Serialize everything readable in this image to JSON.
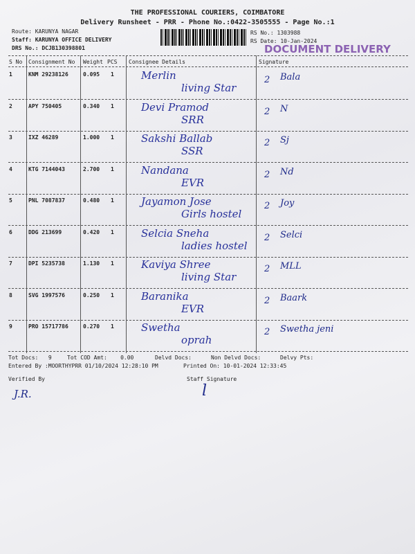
{
  "header": {
    "company": "THE PROFESSIONAL COURIERS, COIMBATORE",
    "subtitle": "Delivery Runsheet - PRR - Phone No.:0422-3505555 - Page No.:1",
    "route": "Route: KARUNYA NAGAR",
    "staff": "Staff: KARUNYA OFFICE DELIVERY",
    "drs_no": "DRS No.: DCJB130398801",
    "rs_no": "RS No.: 1303988",
    "rs_date": "RS Date: 10-Jan-2024",
    "stamp": "DOCUMENT DELIVERY"
  },
  "table": {
    "columns": [
      "S No",
      "Consignment No",
      "Weight",
      "PCS",
      "Consignee Details",
      "Signature"
    ],
    "rows": [
      {
        "sno": "1",
        "consignment": "KNM 29238126",
        "weight": "0.095",
        "pcs": "1",
        "name": "Merlin",
        "place": "living Star",
        "sign": "Bala"
      },
      {
        "sno": "2",
        "consignment": "APY 750405",
        "weight": "0.340",
        "pcs": "1",
        "name": "Devi Pramod",
        "place": "SRR",
        "sign": "N"
      },
      {
        "sno": "3",
        "consignment": "IXZ 46289",
        "weight": "1.000",
        "pcs": "1",
        "name": "Sakshi Ballab",
        "place": "SSR",
        "sign": "Sj"
      },
      {
        "sno": "4",
        "consignment": "KTG 7144043",
        "weight": "2.700",
        "pcs": "1",
        "name": "Nandana",
        "place": "EVR",
        "sign": "Nd"
      },
      {
        "sno": "5",
        "consignment": "PNL 7087837",
        "weight": "0.480",
        "pcs": "1",
        "name": "Jayamon Jose",
        "place": "Girls hostel",
        "sign": "Joy"
      },
      {
        "sno": "6",
        "consignment": "DDG 213699",
        "weight": "0.420",
        "pcs": "1",
        "name": "Selcia Sneha",
        "place": "ladies hostel",
        "sign": "Selci"
      },
      {
        "sno": "7",
        "consignment": "DPI 5235738",
        "weight": "1.130",
        "pcs": "1",
        "name": "Kaviya Shree",
        "place": "living Star",
        "sign": "MLL"
      },
      {
        "sno": "8",
        "consignment": "SVG 1997576",
        "weight": "0.250",
        "pcs": "1",
        "name": "Baranika",
        "place": "EVR",
        "sign": "Baark"
      },
      {
        "sno": "9",
        "consignment": "PRO 15717786",
        "weight": "0.270",
        "pcs": "1",
        "name": "Swetha",
        "place": "oprah",
        "sign": "Swetha jeni"
      }
    ]
  },
  "footer": {
    "tot_docs_label": "Tot Docs:",
    "tot_docs": "9",
    "tot_cod_label": "Tot COD Amt:",
    "tot_cod": "0.00",
    "delvd_docs": "Delvd Docs:",
    "non_delvd_docs": "Non Delvd Docs:",
    "delvy_pts": "Delvy Pts:",
    "entered_by": "Entered By :MOORTHYPRR 01/10/2024 12:28:10 PM",
    "printed_on": "Printed On: 10-01-2024 12:33:45",
    "verified_by": "Verified By",
    "verified_sign": "J.R.",
    "staff_signature": "Staff Signature",
    "staff_sign": "l"
  }
}
